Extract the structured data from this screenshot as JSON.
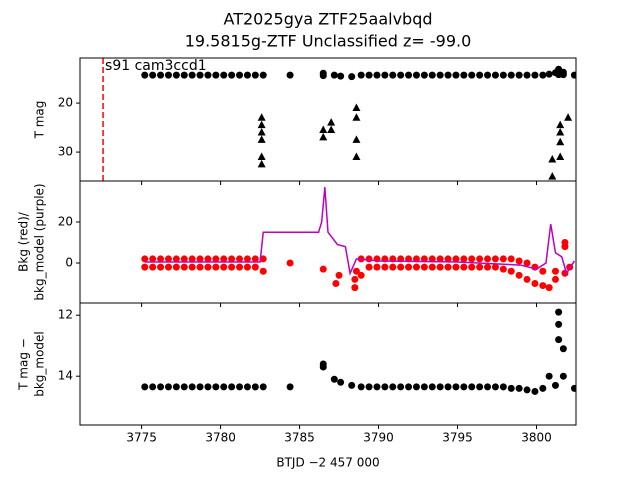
{
  "chart_data": [
    {
      "type": "scatter",
      "title": [
        "AT2025gya  ZTF25aalvbqd",
        "19.5815g-ZTF Unclassified z= -99.0"
      ],
      "ylabel": [
        "T mag"
      ],
      "xlim": [
        3771.1,
        3802.5
      ],
      "ylim": [
        35.9,
        10.8
      ],
      "yticks": [
        20,
        30
      ],
      "annotations": [
        {
          "text": "s91 cam3ccd1",
          "x": 3772.56,
          "color": "#ff0000"
        }
      ],
      "series": [
        {
          "marker": "circle",
          "color": "#000000",
          "x": [
            3775.2,
            3775.7,
            3776.2,
            3776.7,
            3777.2,
            3777.7,
            3778.2,
            3778.7,
            3779.2,
            3779.7,
            3780.2,
            3780.7,
            3781.2,
            3781.7,
            3782.2,
            3782.7,
            3784.4,
            3786.5,
            3786.5,
            3787.2,
            3787.6,
            3788.3,
            3788.9,
            3789.4,
            3789.9,
            3790.4,
            3790.9,
            3791.4,
            3791.9,
            3792.4,
            3792.9,
            3793.4,
            3793.9,
            3794.4,
            3794.9,
            3795.4,
            3795.9,
            3796.4,
            3796.9,
            3797.4,
            3797.9,
            3798.4,
            3798.9,
            3799.4,
            3799.9,
            3800.4,
            3800.8,
            3801.2,
            3801.4,
            3801.4,
            3801.4,
            3801.7,
            3801.7,
            3802.4
          ],
          "values": [
            14.3,
            14.3,
            14.3,
            14.3,
            14.3,
            14.3,
            14.3,
            14.3,
            14.3,
            14.3,
            14.3,
            14.3,
            14.3,
            14.3,
            14.3,
            14.3,
            14.3,
            13.9,
            14.4,
            14.3,
            14.5,
            14.6,
            14.3,
            14.3,
            14.3,
            14.3,
            14.3,
            14.3,
            14.3,
            14.3,
            14.3,
            14.3,
            14.3,
            14.3,
            14.3,
            14.3,
            14.3,
            14.3,
            14.3,
            14.3,
            14.3,
            14.3,
            14.3,
            14.3,
            14.3,
            14.3,
            14.1,
            13.8,
            13.1,
            13.6,
            14.2,
            13.7,
            14.2,
            14.3
          ]
        },
        {
          "marker": "triangle",
          "color": "#000000",
          "x": [
            3782.6,
            3782.6,
            3782.6,
            3782.6,
            3782.6,
            3782.6,
            3786.5,
            3786.5,
            3787.0,
            3787.0,
            3788.6,
            3788.6,
            3788.6,
            3788.6,
            3801.0,
            3801.0,
            3801.5,
            3801.5,
            3801.5,
            3801.5,
            3802.0
          ],
          "values": [
            23,
            24.5,
            26,
            27.5,
            31,
            32.5,
            25.5,
            27,
            24,
            25.5,
            21,
            23,
            27.5,
            31,
            31.5,
            35,
            24.5,
            26,
            28,
            31,
            23
          ]
        }
      ]
    },
    {
      "type": "scatter",
      "ylabel": [
        "Bkg (red)/",
        "bkg_model (purple)"
      ],
      "xlim": [
        3771.1,
        3802.5
      ],
      "ylim": [
        -19.5,
        40
      ],
      "yticks": [
        0,
        20
      ],
      "series": [
        {
          "marker": "circle",
          "color": "#ff0000",
          "x": [
            3775.2,
            3775.7,
            3776.2,
            3776.7,
            3777.2,
            3777.7,
            3778.2,
            3778.7,
            3779.2,
            3779.7,
            3780.2,
            3780.7,
            3781.2,
            3781.7,
            3782.2,
            3782.7,
            3788.9,
            3789.4,
            3789.9,
            3790.4,
            3790.9,
            3791.4,
            3791.9,
            3792.4,
            3792.9,
            3793.4,
            3793.9,
            3794.4,
            3794.9,
            3795.4,
            3795.9,
            3796.4,
            3796.9,
            3797.4,
            3797.9,
            3798.4,
            3798.9,
            3799.4,
            3799.9,
            3800.4
          ],
          "values": [
            2,
            2,
            2,
            2,
            2,
            2,
            2,
            2,
            2,
            2,
            2,
            2,
            2,
            2,
            2,
            2,
            2,
            2,
            2,
            2,
            2,
            2,
            2,
            2,
            2,
            2,
            2,
            2,
            2,
            2,
            2,
            2,
            2,
            2,
            2,
            2,
            1,
            0,
            -2,
            -4
          ]
        },
        {
          "marker": "circle",
          "color": "#ff0000",
          "x": [
            3775.2,
            3775.7,
            3776.2,
            3776.7,
            3777.2,
            3777.7,
            3778.2,
            3778.7,
            3779.2,
            3779.7,
            3780.2,
            3780.7,
            3781.2,
            3781.7,
            3782.2,
            3782.7,
            3788.9,
            3789.4,
            3789.9,
            3790.4,
            3790.9,
            3791.4,
            3791.9,
            3792.4,
            3792.9,
            3793.4,
            3793.9,
            3794.4,
            3794.9,
            3795.4,
            3795.9,
            3796.4,
            3796.9,
            3797.4,
            3797.9,
            3798.4,
            3798.9,
            3799.4,
            3799.9,
            3800.4
          ],
          "values": [
            -2,
            -2,
            -2,
            -2,
            -2,
            -2,
            -2,
            -2,
            -2,
            -2,
            -2,
            -2,
            -2,
            -2,
            -2,
            -4,
            -6,
            -2,
            -2,
            -2,
            -2,
            -2,
            -2,
            -2,
            -2,
            -2,
            -2,
            -2,
            -2,
            -2,
            -2,
            -2,
            -2,
            -2,
            -3,
            -4,
            -6,
            -8,
            -10,
            -11
          ]
        },
        {
          "marker": "circle",
          "color": "#ff0000",
          "x": [
            3784.4,
            3786.5,
            3787.3,
            3787.5,
            3788.5,
            3788.5,
            3788.6,
            3800.8,
            3801.2,
            3801.2,
            3801.8,
            3801.8,
            3801.8,
            3802.1
          ],
          "values": [
            0,
            -3,
            -10,
            -6,
            -12,
            -8,
            -4,
            -12,
            -8,
            -4,
            10,
            8,
            -5,
            -2
          ]
        },
        {
          "marker": "line",
          "color": "#bf00bf",
          "x": [
            3775.2,
            3782.5,
            3782.7,
            3786.2,
            3786.4,
            3786.6,
            3786.8,
            3787.4,
            3787.9,
            3788.2,
            3788.6,
            3790,
            3795,
            3799,
            3800,
            3800.6,
            3800.9,
            3801.2,
            3801.6,
            3801.9,
            3802.4
          ],
          "values": [
            0.5,
            0.5,
            15,
            15,
            20,
            37,
            15,
            9,
            8,
            -5,
            2,
            1,
            0.5,
            -1,
            -3,
            0,
            19,
            5,
            3,
            -5,
            1
          ]
        }
      ]
    },
    {
      "type": "scatter",
      "ylabel": [
        "T mag −",
        "bkg_model"
      ],
      "xlabel": "BTJD −2 457 000",
      "xlim": [
        3771.1,
        3802.5
      ],
      "xticks": [
        3775,
        3780,
        3785,
        3790,
        3795,
        3800
      ],
      "ylim": [
        15.6,
        11.6
      ],
      "yticks": [
        12,
        14
      ],
      "series": [
        {
          "marker": "circle",
          "color": "#000000",
          "x": [
            3775.2,
            3775.7,
            3776.2,
            3776.7,
            3777.2,
            3777.7,
            3778.2,
            3778.7,
            3779.2,
            3779.7,
            3780.2,
            3780.7,
            3781.2,
            3781.7,
            3782.2,
            3782.7,
            3784.4,
            3786.5,
            3786.5,
            3787.2,
            3787.6,
            3788.3,
            3788.9,
            3789.4,
            3789.9,
            3790.4,
            3790.9,
            3791.4,
            3791.9,
            3792.4,
            3792.9,
            3793.4,
            3793.9,
            3794.4,
            3794.9,
            3795.4,
            3795.9,
            3796.4,
            3796.9,
            3797.4,
            3797.9,
            3798.4,
            3798.9,
            3799.4,
            3799.9,
            3800.4,
            3800.8,
            3801.2,
            3801.4,
            3801.4,
            3801.4,
            3801.7,
            3801.7,
            3802.4
          ],
          "values": [
            14.35,
            14.35,
            14.35,
            14.35,
            14.35,
            14.35,
            14.35,
            14.35,
            14.35,
            14.35,
            14.35,
            14.35,
            14.35,
            14.35,
            14.35,
            14.35,
            14.35,
            13.6,
            13.7,
            14.1,
            14.2,
            14.3,
            14.35,
            14.35,
            14.35,
            14.35,
            14.35,
            14.35,
            14.35,
            14.35,
            14.35,
            14.35,
            14.35,
            14.35,
            14.35,
            14.35,
            14.35,
            14.35,
            14.35,
            14.35,
            14.35,
            14.4,
            14.4,
            14.45,
            14.5,
            14.4,
            14.0,
            14.3,
            11.9,
            12.3,
            12.8,
            13.1,
            14.0,
            14.4
          ]
        }
      ]
    }
  ]
}
